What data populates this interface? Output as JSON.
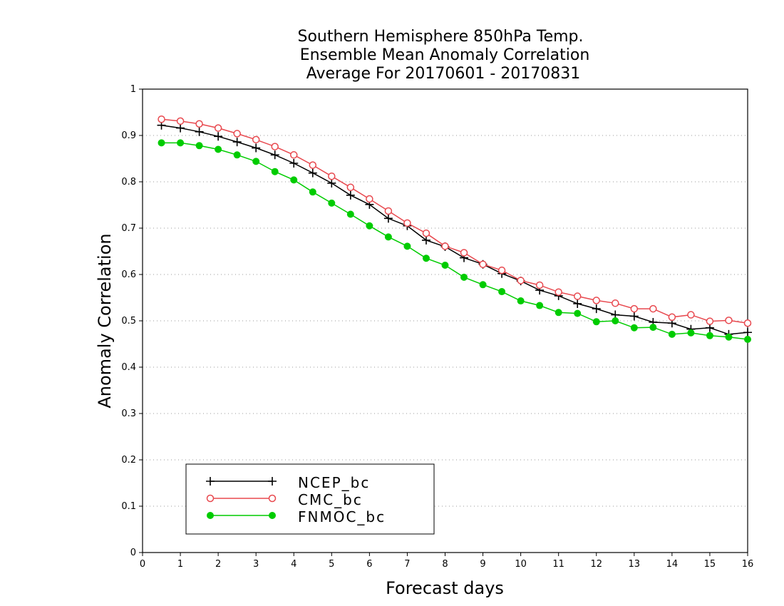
{
  "chart_data": {
    "type": "line",
    "title": [
      "Southern Hemisphere 850hPa Temp.",
      "Ensemble Mean Anomaly Correlation",
      "Average For 20170601 - 20170831"
    ],
    "xlabel": "Forecast days",
    "ylabel": "Anomaly Correlation",
    "xlim": [
      0,
      16
    ],
    "ylim": [
      0,
      1
    ],
    "xticks": [
      "0",
      "1",
      "2",
      "3",
      "4",
      "5",
      "6",
      "7",
      "8",
      "9",
      "10",
      "11",
      "12",
      "13",
      "14",
      "15",
      "16"
    ],
    "yticks": [
      "0",
      "0.1",
      "0.2",
      "0.3",
      "0.4",
      "0.5",
      "0.6",
      "0.7",
      "0.8",
      "0.9",
      "1"
    ],
    "grid": "horizontal dotted",
    "legend_position": "bottom-left",
    "x": [
      0.5,
      1,
      1.5,
      2,
      2.5,
      3,
      3.5,
      4,
      4.5,
      5,
      5.5,
      6,
      6.5,
      7,
      7.5,
      8,
      8.5,
      9,
      9.5,
      10,
      10.5,
      11,
      11.5,
      12,
      12.5,
      13,
      13.5,
      14,
      14.5,
      15,
      15.5,
      16
    ],
    "series": [
      {
        "name": "NCEP_bc",
        "color": "#000000",
        "marker": "plus",
        "values": [
          0.922,
          0.916,
          0.908,
          0.898,
          0.886,
          0.873,
          0.858,
          0.84,
          0.819,
          0.797,
          0.771,
          0.751,
          0.721,
          0.705,
          0.674,
          0.66,
          0.636,
          0.622,
          0.602,
          0.586,
          0.566,
          0.554,
          0.537,
          0.526,
          0.513,
          0.51,
          0.497,
          0.495,
          0.482,
          0.485,
          0.471,
          0.475
        ]
      },
      {
        "name": "CMC_bc",
        "color": "#e8484e",
        "marker": "open-circle",
        "values": [
          0.935,
          0.931,
          0.925,
          0.916,
          0.904,
          0.891,
          0.876,
          0.858,
          0.836,
          0.812,
          0.788,
          0.763,
          0.737,
          0.711,
          0.689,
          0.661,
          0.647,
          0.622,
          0.609,
          0.587,
          0.577,
          0.562,
          0.553,
          0.544,
          0.538,
          0.526,
          0.526,
          0.508,
          0.513,
          0.499,
          0.501,
          0.495
        ]
      },
      {
        "name": "FNMOC_bc",
        "color": "#00cc00",
        "marker": "filled-circle",
        "values": [
          0.884,
          0.884,
          0.878,
          0.87,
          0.858,
          0.844,
          0.822,
          0.804,
          0.778,
          0.754,
          0.73,
          0.705,
          0.681,
          0.661,
          0.635,
          0.62,
          0.594,
          0.578,
          0.563,
          0.543,
          0.533,
          0.518,
          0.516,
          0.498,
          0.5,
          0.485,
          0.486,
          0.471,
          0.474,
          0.468,
          0.465,
          0.46
        ]
      }
    ]
  }
}
